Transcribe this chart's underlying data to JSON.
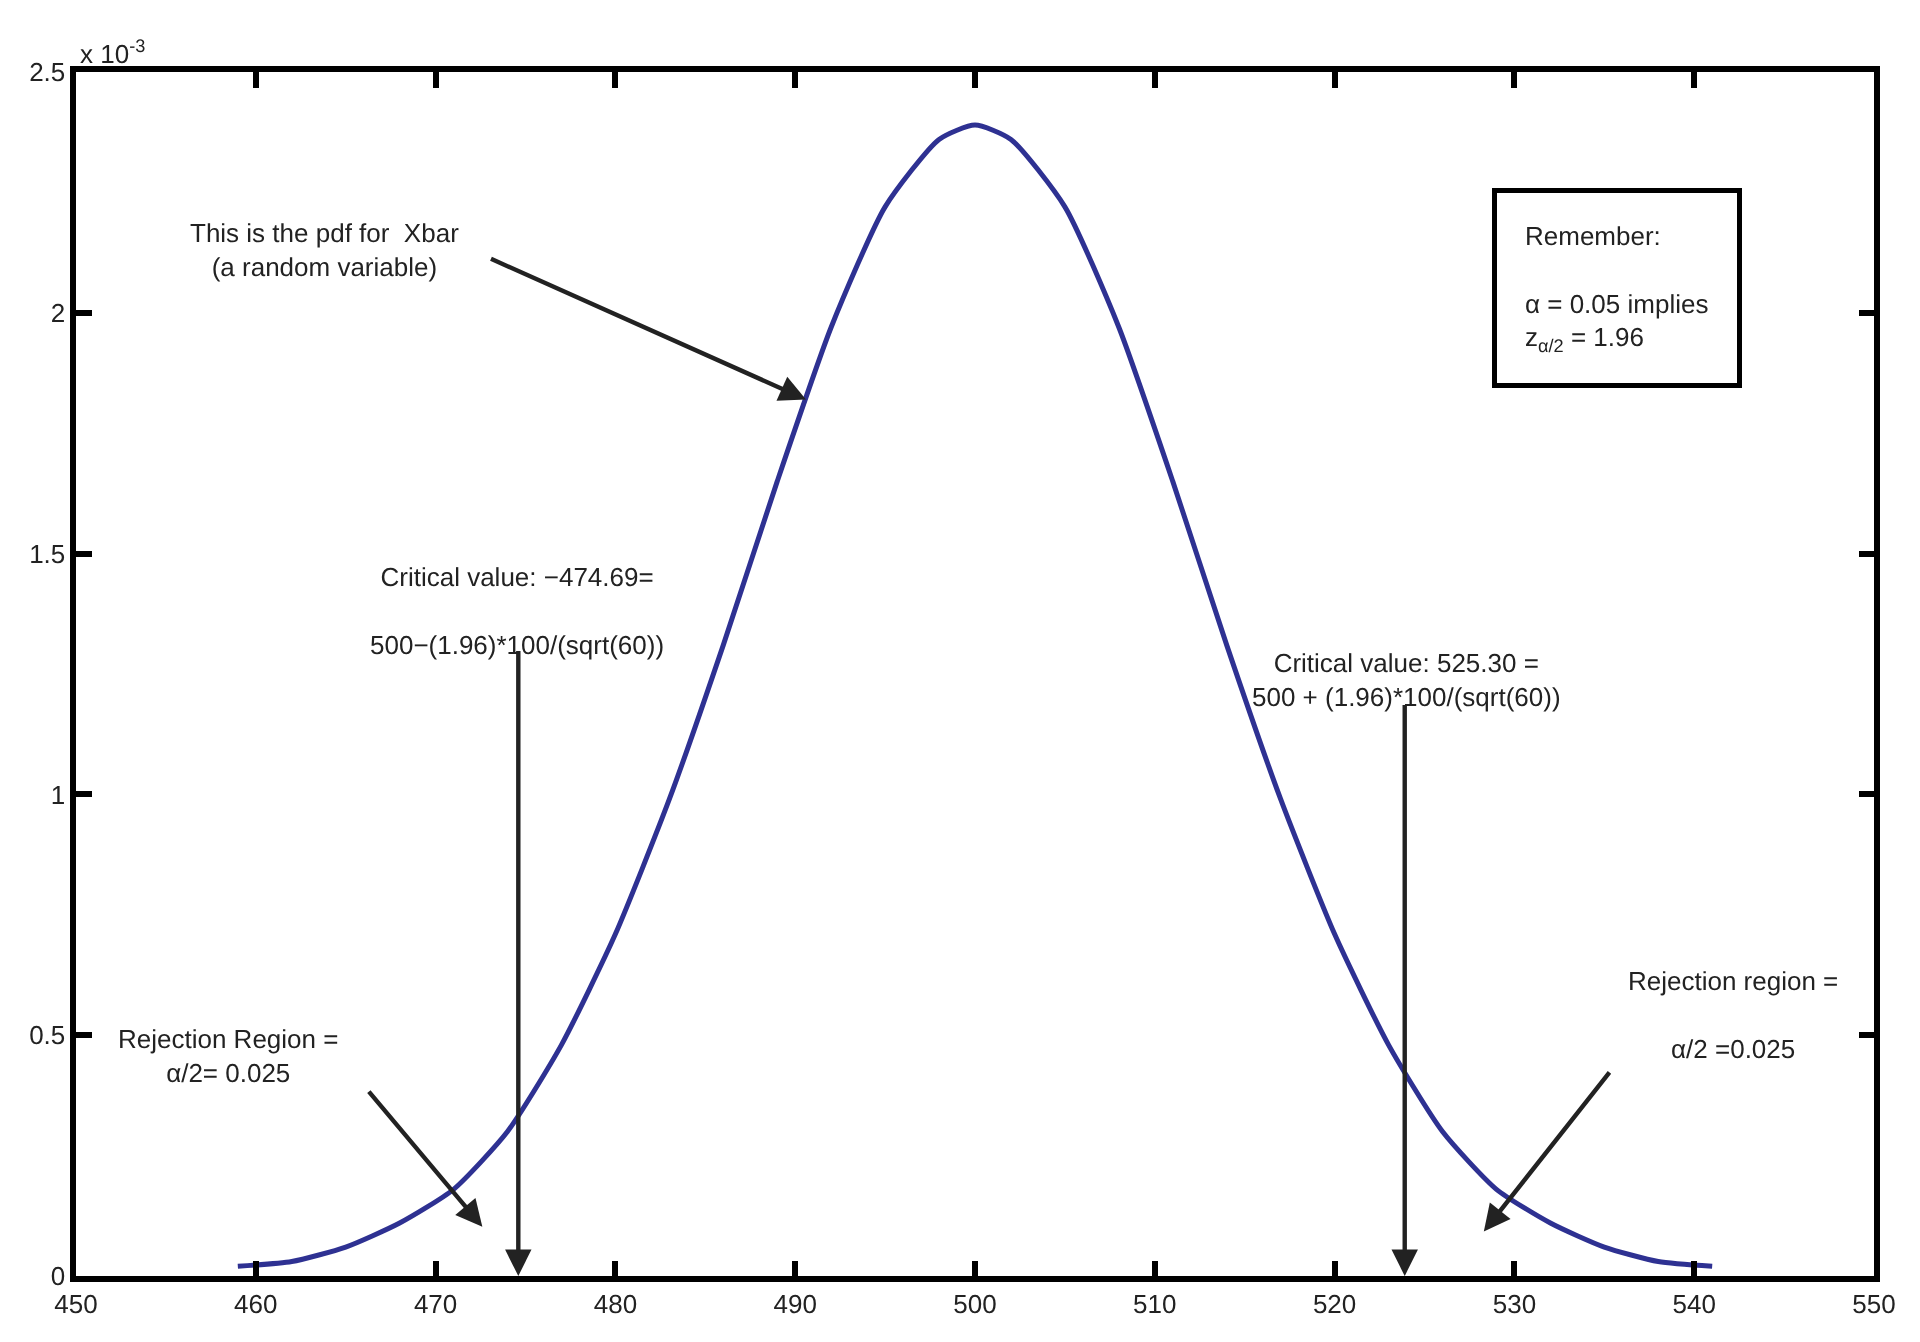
{
  "chart_data": {
    "type": "line",
    "x": [
      459,
      462,
      465,
      468,
      471,
      474,
      477,
      480,
      483,
      486,
      489,
      492,
      495,
      498,
      500,
      502,
      505,
      508,
      511,
      514,
      517,
      520,
      523,
      526,
      529,
      532,
      535,
      538,
      541
    ],
    "series": [
      {
        "color": "#2e3192",
        "values": [
          0.02,
          0.03,
          0.06,
          0.11,
          0.18,
          0.3,
          0.48,
          0.71,
          0.99,
          1.31,
          1.65,
          1.97,
          2.22,
          2.36,
          2.39,
          2.36,
          2.22,
          1.97,
          1.65,
          1.31,
          0.99,
          0.71,
          0.48,
          0.3,
          0.18,
          0.11,
          0.06,
          0.03,
          0.02
        ]
      }
    ],
    "xlim": [
      450,
      550
    ],
    "xticks": [
      450,
      460,
      470,
      480,
      490,
      500,
      510,
      520,
      530,
      540,
      550
    ],
    "ylim": [
      0,
      2.5
    ],
    "yticks": [
      0,
      0.5,
      1,
      1.5,
      2,
      2.5
    ],
    "marker": "none",
    "line_style": "solid",
    "annotations": [
      "x 10$^{-3}$",
      {
        "text": "This is the pdf for  Xbar\n(a random variable)",
        "x": 490.6,
        "y": 1.82
      },
      "Critical value: −474.69=\n\n500−(1.96)*100/(sqrt(60))",
      "Critical value: 525.30 =\n500 + (1.96)*100/(sqrt(60))",
      "Rejection Region =\nα/2= 0.025",
      "Rejection region =\n\nα/2 =0.025",
      "Remember:\n\nα = 0.05 implies\nz$_{α/2}$ = 1.96"
    ]
  }
}
